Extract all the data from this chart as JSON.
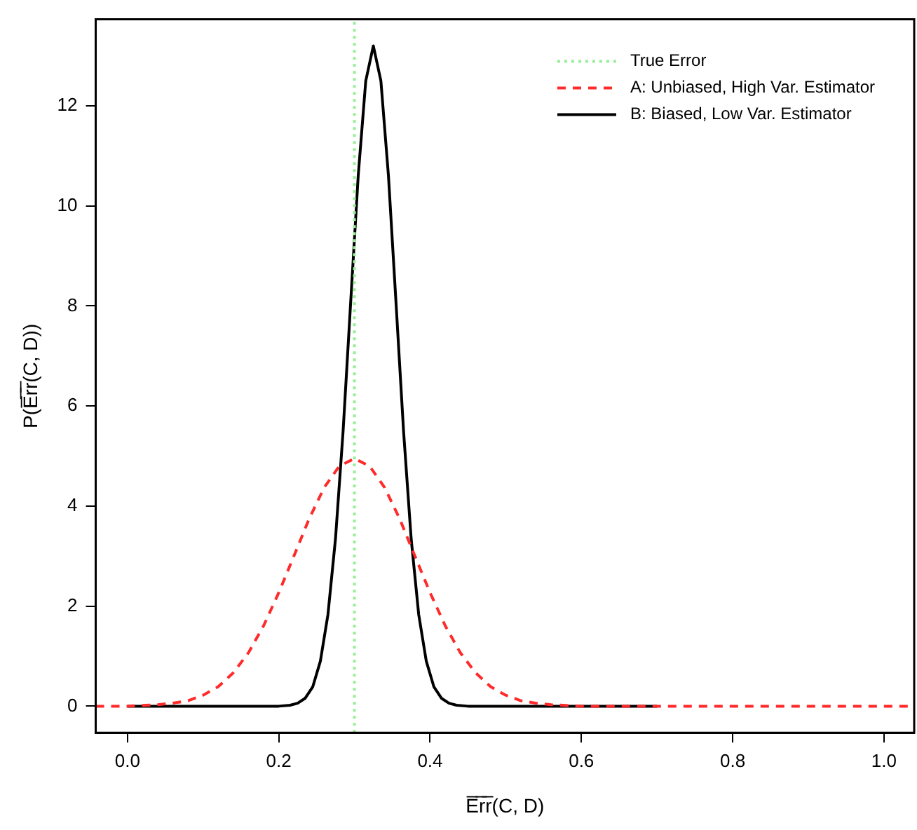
{
  "chart_data": {
    "type": "line",
    "xlabel": "E̅r̅r̅(C, D)",
    "ylabel": "P(E̅r̅r̅(C, D))",
    "xlim": [
      -0.042,
      1.04
    ],
    "ylim": [
      -0.53,
      13.73
    ],
    "xticks": [
      {
        "value": 0,
        "label": "0.0"
      },
      {
        "value": 0.2,
        "label": "0.2"
      },
      {
        "value": 0.4,
        "label": "0.4"
      },
      {
        "value": 0.6,
        "label": "0.6"
      },
      {
        "value": 0.8,
        "label": "0.8"
      },
      {
        "value": 1,
        "label": "1.0"
      }
    ],
    "yticks": [
      0,
      2,
      4,
      6,
      8,
      10,
      12
    ],
    "grid": false,
    "legend": "top right",
    "marker": "none",
    "series": [
      {
        "name": "True Error",
        "color": "#99ee99",
        "line_style": "dotted",
        "x": [
          0.3,
          0.3
        ],
        "values": [
          -0.53,
          13.73
        ]
      },
      {
        "name": "A: Unbiased, High Var. Estimator",
        "color": "#ff2a2a",
        "line_style": "dashed",
        "x": [
          -0.042,
          0,
          0.04,
          0.06,
          0.08,
          0.1,
          0.12,
          0.14,
          0.16,
          0.18,
          0.2,
          0.22,
          0.24,
          0.26,
          0.28,
          0.3,
          0.32,
          0.34,
          0.36,
          0.38,
          0.4,
          0.42,
          0.44,
          0.46,
          0.48,
          0.5,
          0.52,
          0.54,
          0.56,
          0.6,
          0.8,
          1.04
        ],
        "values": [
          0,
          0,
          0.03,
          0.06,
          0.11,
          0.22,
          0.39,
          0.67,
          1.07,
          1.61,
          2.27,
          3.0,
          3.74,
          4.37,
          4.8,
          4.95,
          4.8,
          4.37,
          3.74,
          3.0,
          2.27,
          1.61,
          1.07,
          0.67,
          0.39,
          0.22,
          0.11,
          0.06,
          0.03,
          0,
          0,
          0
        ]
      },
      {
        "name": "B: Biased, Low Var. Estimator",
        "color": "#000000",
        "line_style": "solid",
        "x": [
          0,
          0.1,
          0.2,
          0.215,
          0.225,
          0.235,
          0.245,
          0.255,
          0.265,
          0.275,
          0.285,
          0.295,
          0.305,
          0.315,
          0.325,
          0.335,
          0.345,
          0.355,
          0.365,
          0.375,
          0.385,
          0.395,
          0.405,
          0.415,
          0.425,
          0.435,
          0.45,
          0.5,
          0.6,
          0.7
        ],
        "values": [
          0,
          0,
          0,
          0.02,
          0.06,
          0.16,
          0.39,
          0.9,
          1.83,
          3.35,
          5.49,
          8.06,
          10.6,
          12.5,
          13.2,
          12.5,
          10.6,
          8.06,
          5.49,
          3.35,
          1.83,
          0.9,
          0.39,
          0.16,
          0.06,
          0.02,
          0,
          0,
          0,
          0
        ]
      }
    ]
  }
}
